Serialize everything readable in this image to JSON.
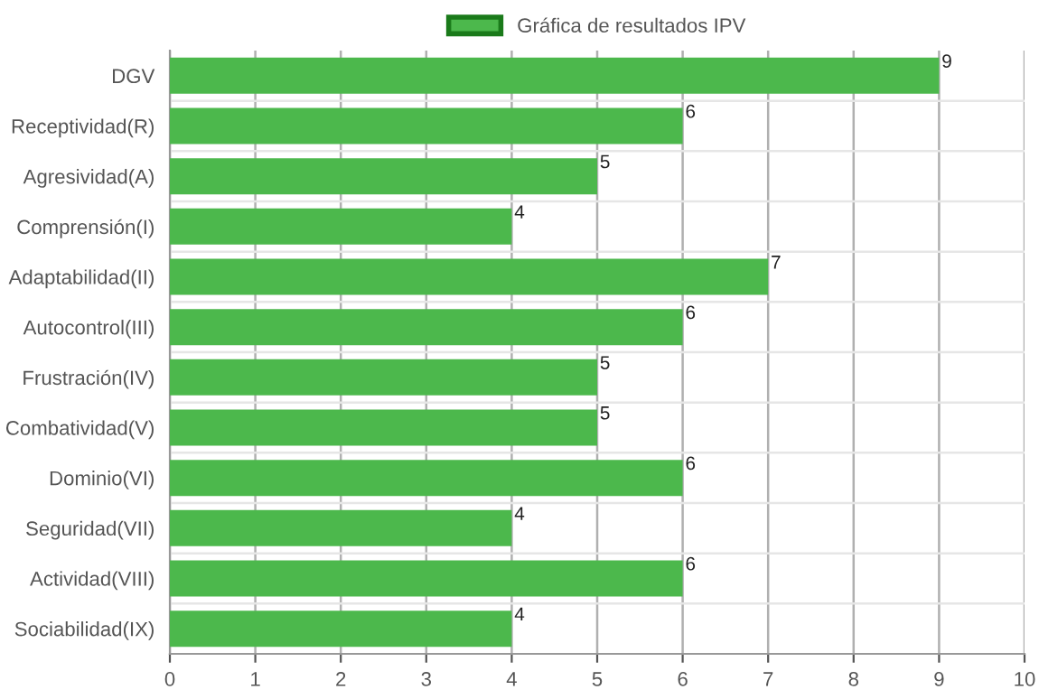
{
  "chart_data": {
    "type": "bar",
    "orientation": "horizontal",
    "categories": [
      "DGV",
      "Receptividad(R)",
      "Agresividad(A)",
      "Comprensión(I)",
      "Adaptabilidad(II)",
      "Autocontrol(III)",
      "Frustración(IV)",
      "Combatividad(V)",
      "Dominio(VI)",
      "Seguridad(VII)",
      "Actividad(VIII)",
      "Sociabilidad(IX)"
    ],
    "series": [
      {
        "name": "Gráfica de resultados IPV",
        "color": "#4cb84c",
        "values": [
          9,
          6,
          5,
          4,
          7,
          6,
          5,
          5,
          6,
          4,
          6,
          4
        ]
      }
    ],
    "xlim": [
      0,
      10
    ],
    "xticks": [
      0,
      1,
      2,
      3,
      4,
      5,
      6,
      7,
      8,
      9,
      10
    ],
    "grid": true,
    "legend": "top",
    "data_labels": true
  }
}
